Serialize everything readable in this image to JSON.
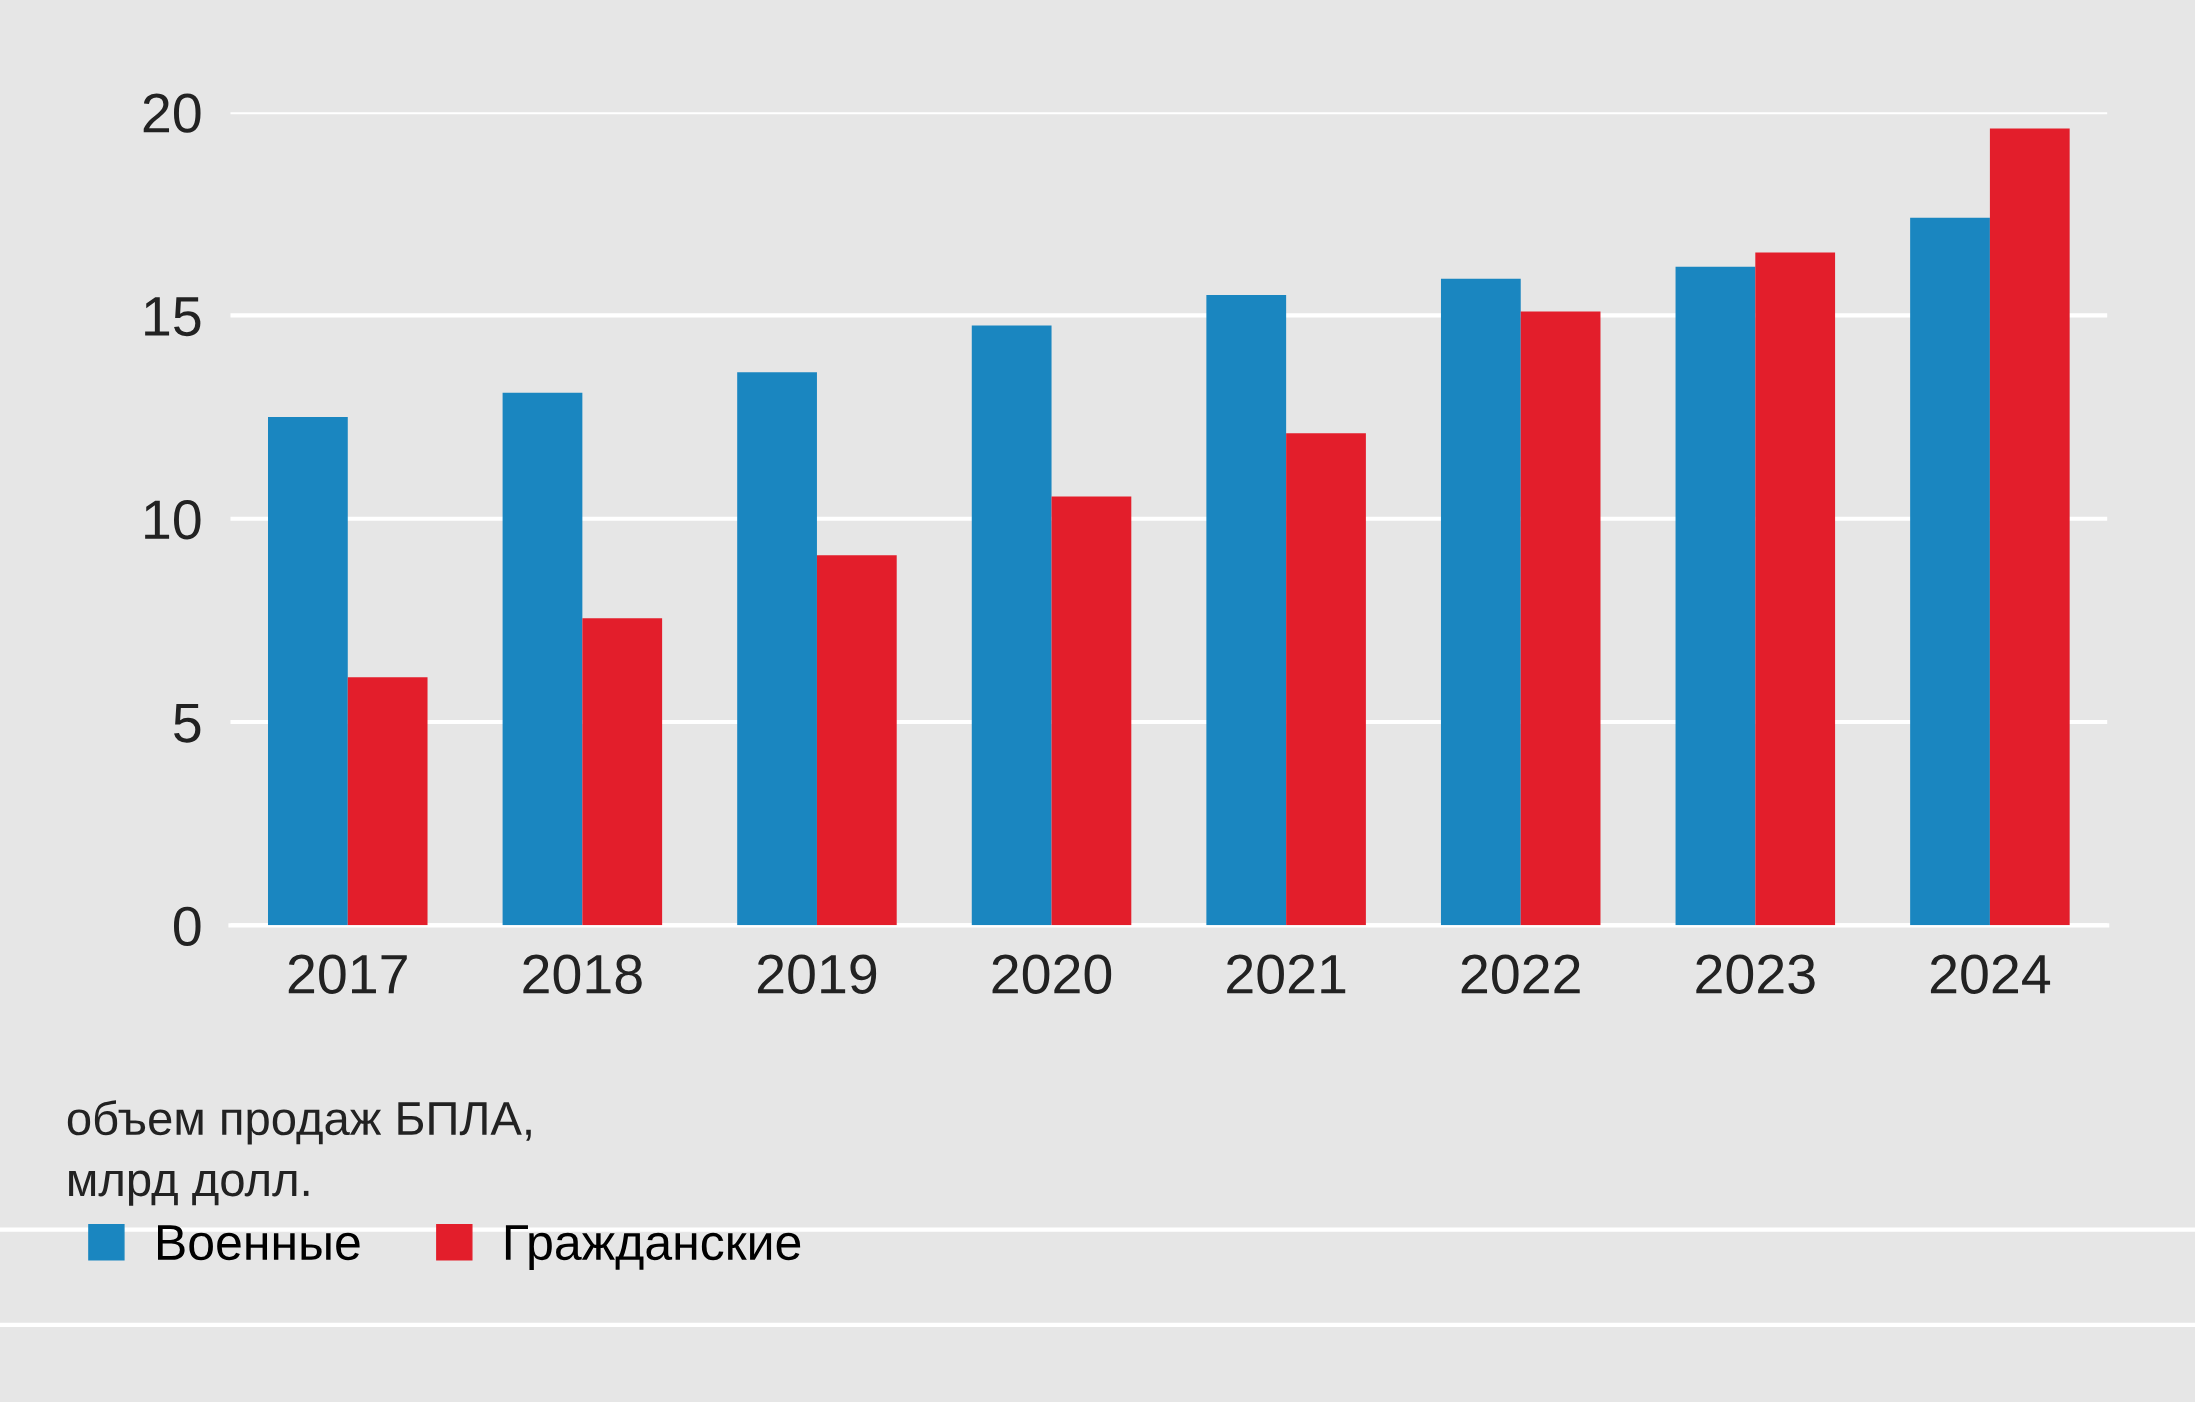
{
  "chart_data": {
    "type": "bar",
    "categories": [
      "2017",
      "2018",
      "2019",
      "2020",
      "2021",
      "2022",
      "2023",
      "2024"
    ],
    "series": [
      {
        "name": "Военные",
        "color": "#1a86c0",
        "values": [
          12.5,
          13.1,
          13.6,
          14.75,
          15.5,
          15.9,
          16.2,
          17.4
        ]
      },
      {
        "name": "Гражданские",
        "color": "#e31e2b",
        "values": [
          6.1,
          7.55,
          9.1,
          10.55,
          12.1,
          15.1,
          16.55,
          19.6
        ]
      }
    ],
    "ylabel": "объем продаж БПЛА,\nмлрд долл.",
    "ylim": [
      0,
      20
    ],
    "yticks": [
      0,
      5,
      10,
      15,
      20
    ],
    "grid": "y",
    "legend": "bottom left"
  }
}
